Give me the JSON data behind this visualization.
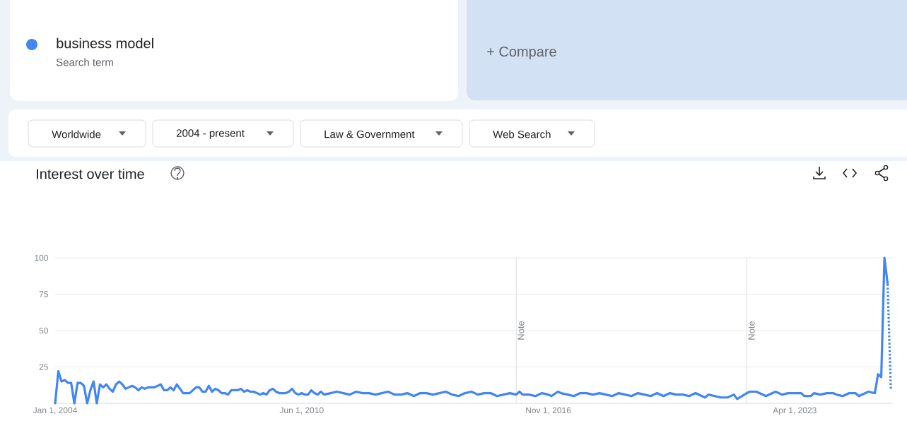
{
  "chart_data": {
    "type": "line",
    "title": "Interest over time",
    "annotations": [
      "Search term",
      "+ Compare",
      "Worldwide",
      "2004 - present",
      "Law & Government",
      "Web Search"
    ],
    "x": [
      "2004-01",
      "2004-02",
      "2004-03",
      "2004-04",
      "2004-05",
      "2004-06",
      "2004-07",
      "2004-08",
      "2004-09",
      "2004-10",
      "2004-11",
      "2004-12",
      "2005-01",
      "2005-02",
      "2005-03",
      "2005-04",
      "2005-05",
      "2005-06",
      "2005-07",
      "2005-08",
      "2005-09",
      "2005-10",
      "2005-11",
      "2005-12",
      "2006-01",
      "2006-02",
      "2006-03",
      "2006-04",
      "2006-05",
      "2006-06",
      "2006-07",
      "2006-08",
      "2006-09",
      "2006-10",
      "2006-11",
      "2006-12",
      "2007-01",
      "2007-02",
      "2007-03",
      "2007-04",
      "2007-05",
      "2007-06",
      "2007-07",
      "2007-08",
      "2007-09",
      "2007-10",
      "2007-11",
      "2007-12",
      "2008-01",
      "2008-02",
      "2008-03",
      "2008-04",
      "2008-05",
      "2008-06",
      "2008-07",
      "2008-08",
      "2008-09",
      "2008-10",
      "2008-11",
      "2008-12",
      "2009-01",
      "2009-02",
      "2009-03",
      "2009-04",
      "2009-05",
      "2009-06",
      "2009-07",
      "2009-08",
      "2009-09",
      "2009-10",
      "2009-11",
      "2009-12",
      "2010-01",
      "2010-02",
      "2010-03",
      "2010-04",
      "2010-05",
      "2010-06",
      "2010-07",
      "2010-08",
      "2010-09",
      "2010-10",
      "2010-11",
      "2010-12",
      "2011-01",
      "2011-03",
      "2011-05",
      "2011-07",
      "2011-09",
      "2011-11",
      "2012-01",
      "2012-03",
      "2012-05",
      "2012-07",
      "2012-09",
      "2012-11",
      "2013-01",
      "2013-03",
      "2013-05",
      "2013-07",
      "2013-09",
      "2013-11",
      "2014-01",
      "2014-03",
      "2014-05",
      "2014-07",
      "2014-09",
      "2014-11",
      "2015-01",
      "2015-03",
      "2015-05",
      "2015-07",
      "2015-09",
      "2015-11",
      "2016-01",
      "2016-02",
      "2016-03",
      "2016-05",
      "2016-07",
      "2016-09",
      "2016-11",
      "2016-12",
      "2017-02",
      "2017-03",
      "2017-05",
      "2017-07",
      "2017-09",
      "2017-11",
      "2018-01",
      "2018-03",
      "2018-05",
      "2018-07",
      "2018-09",
      "2018-11",
      "2019-01",
      "2019-03",
      "2019-05",
      "2019-07",
      "2019-09",
      "2019-11",
      "2020-01",
      "2020-03",
      "2020-05",
      "2020-07",
      "2020-09",
      "2020-11",
      "2020-12",
      "2021-01",
      "2021-03",
      "2021-05",
      "2021-07",
      "2021-09",
      "2021-10",
      "2022-01",
      "2022-02",
      "2022-04",
      "2022-07",
      "2022-09",
      "2022-10",
      "2022-12",
      "2023-02",
      "2023-04",
      "2023-06",
      "2023-07",
      "2023-09",
      "2023-10",
      "2023-12",
      "2024-02",
      "2024-04",
      "2024-05",
      "2024-07",
      "2024-09",
      "2024-11",
      "2024-12",
      "2025-03",
      "2025-05",
      "2025-06",
      "2025-07",
      "2025-08",
      "2025-09"
    ],
    "series": [
      {
        "name": "business model",
        "color": "#4285f4",
        "line_style": "solid",
        "values": [
          0,
          22,
          15,
          16,
          14,
          14,
          0,
          14,
          14,
          12,
          0,
          9,
          15,
          0,
          13,
          11,
          13,
          10,
          8,
          13,
          15,
          13,
          10,
          11,
          12,
          11,
          9,
          11,
          10,
          11,
          11,
          11,
          12,
          13,
          9,
          9,
          11,
          9,
          13,
          10,
          7,
          7,
          7,
          9,
          11,
          11,
          8,
          8,
          12,
          8,
          10,
          9,
          7,
          7,
          6,
          9,
          9,
          9,
          10,
          8,
          9,
          8,
          8,
          7,
          6,
          7,
          6,
          9,
          10,
          8,
          7,
          7,
          7,
          8,
          10,
          7,
          6,
          7,
          6,
          6,
          9,
          7,
          6,
          8,
          6,
          7,
          8,
          7,
          6,
          8,
          7,
          7,
          6,
          7,
          8,
          6,
          6,
          7,
          5,
          7,
          7,
          6,
          7,
          8,
          6,
          5,
          7,
          8,
          6,
          7,
          7,
          5,
          6,
          7,
          6,
          8,
          6,
          6,
          5,
          7,
          6,
          5,
          8,
          7,
          6,
          5,
          7,
          7,
          6,
          7,
          6,
          5,
          7,
          6,
          5,
          7,
          6,
          5,
          7,
          5,
          7,
          6,
          6,
          5,
          7,
          5,
          4,
          6,
          5,
          4,
          4,
          6,
          3,
          7,
          8,
          8,
          5,
          7,
          8,
          6,
          7,
          7,
          7,
          5,
          5,
          7,
          6,
          7,
          7,
          6,
          5,
          7,
          7,
          5,
          8,
          7,
          20,
          18,
          100,
          82
        ]
      },
      {
        "color": "#4285f4",
        "line_style": "dotted",
        "x": [
          "2025-09",
          "2025-10"
        ],
        "values": [
          82,
          9
        ]
      }
    ],
    "xlim": [
      "2004-01-01",
      "2025-10-20"
    ],
    "xticks": [
      {
        "value": "2004-01-01",
        "label": "Jan 1, 2004"
      },
      {
        "value": "2010-06-01",
        "label": "Jun 1, 2010"
      },
      {
        "value": "2016-11-01",
        "label": "Nov 1, 2016"
      },
      {
        "value": "2023-04-01",
        "label": "Apr 1, 2023"
      }
    ],
    "ylim": [
      0,
      100
    ],
    "yticks": [
      25,
      50,
      75,
      100
    ],
    "ref_lines": [
      {
        "axis": "x",
        "value": "2016-01",
        "label": "Note",
        "color": "#dadce0"
      },
      {
        "axis": "x",
        "value": "2022-01",
        "label": "Note",
        "color": "#dadce0"
      }
    ],
    "grid": "y",
    "legend": "top left"
  }
}
